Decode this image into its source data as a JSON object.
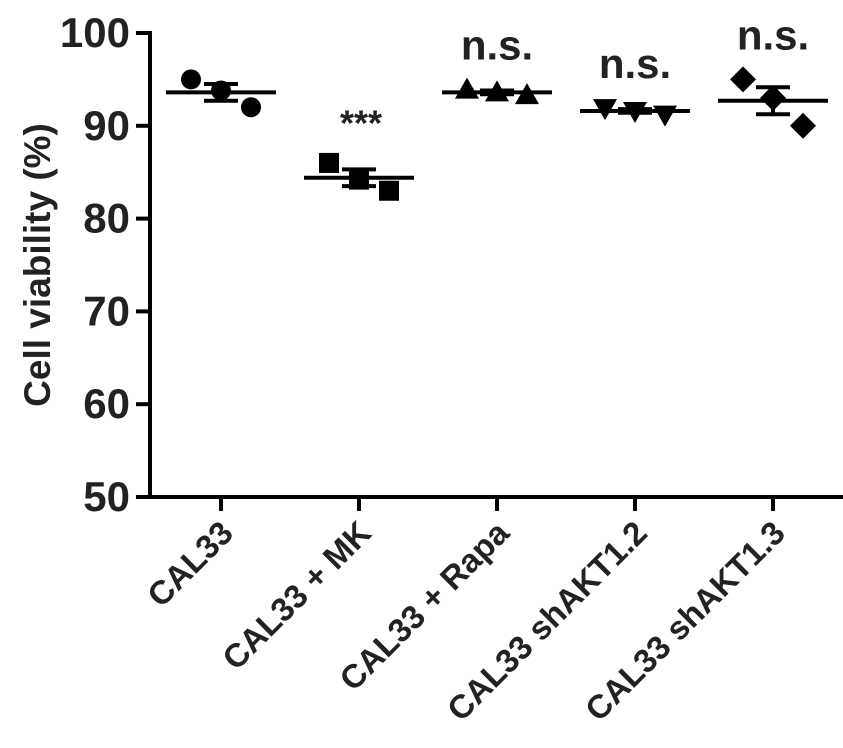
{
  "chart_data": {
    "type": "scatter",
    "title": "",
    "xlabel": "",
    "ylabel": "Cell viability (%)",
    "ylim": [
      50,
      100
    ],
    "yticks": [
      "50",
      "60",
      "70",
      "80",
      "90",
      "100"
    ],
    "grid": false,
    "legend": "none",
    "categories": [
      "CAL33",
      "CAL33 + MK",
      "CAL33 + Rapa",
      "CAL33 shAKT1.2",
      "CAL33 shAKT1.3"
    ],
    "series": [
      {
        "category": "CAL33",
        "marker": "circle",
        "points": [
          95.0,
          93.8,
          92.0
        ],
        "mean": 93.6,
        "sem": 0.9,
        "annotation": ""
      },
      {
        "category": "CAL33 + MK",
        "marker": "square",
        "points": [
          86.0,
          84.2,
          83.0
        ],
        "mean": 84.4,
        "sem": 0.9,
        "annotation": "***"
      },
      {
        "category": "CAL33 + Rapa",
        "marker": "triangle-up",
        "points": [
          93.9,
          93.6,
          93.3
        ],
        "mean": 93.6,
        "sem": 0.2,
        "annotation": "n.s."
      },
      {
        "category": "CAL33 shAKT1.2",
        "marker": "triangle-down",
        "points": [
          91.9,
          91.6,
          91.2
        ],
        "mean": 91.6,
        "sem": 0.2,
        "annotation": "n.s."
      },
      {
        "category": "CAL33 shAKT1.3",
        "marker": "diamond",
        "points": [
          95.0,
          93.0,
          90.0
        ],
        "mean": 92.7,
        "sem": 1.45,
        "annotation": "n.s."
      }
    ],
    "color": "#000000",
    "text_color": "#222222"
  }
}
